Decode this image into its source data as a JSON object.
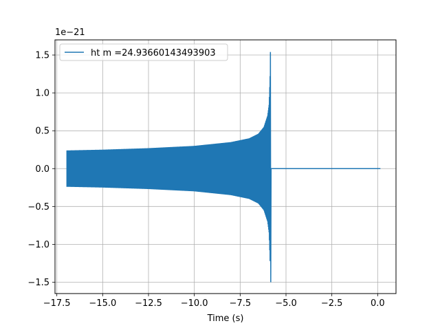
{
  "chart_data": {
    "type": "line",
    "title": "",
    "xlabel": "Time (s)",
    "ylabel": "",
    "y_offset_label": "1e−21",
    "xlim": [
      -17.6,
      1.0
    ],
    "ylim": [
      -1.65,
      1.7
    ],
    "xticks": [
      -17.5,
      -15.0,
      -12.5,
      -10.0,
      -7.5,
      -5.0,
      -2.5,
      0.0
    ],
    "xtick_labels": [
      "−17.5",
      "−15.0",
      "−12.5",
      "−10.0",
      "−7.5",
      "−5.0",
      "−2.5",
      "0.0"
    ],
    "yticks": [
      -1.5,
      -1.0,
      -0.5,
      0.0,
      0.5,
      1.0,
      1.5
    ],
    "ytick_labels": [
      "−1.5",
      "−1.0",
      "−0.5",
      "0.0",
      "0.5",
      "1.0",
      "1.5"
    ],
    "grid": true,
    "legend_position": "upper-left",
    "series": [
      {
        "name": "ht m =24.93660143493903",
        "color": "#1f77b4",
        "signal_start": -16.95,
        "merger_time": -5.85,
        "end_time": 0.15,
        "envelope": {
          "x": [
            -16.95,
            -15.0,
            -12.5,
            -10.0,
            -8.0,
            -7.0,
            -6.5,
            -6.2,
            -6.0,
            -5.92,
            -5.87,
            -5.85
          ],
          "y": [
            0.24,
            0.25,
            0.27,
            0.3,
            0.35,
            0.4,
            0.46,
            0.55,
            0.7,
            0.85,
            1.2,
            1.54
          ]
        },
        "peak_min": -1.5
      }
    ]
  }
}
